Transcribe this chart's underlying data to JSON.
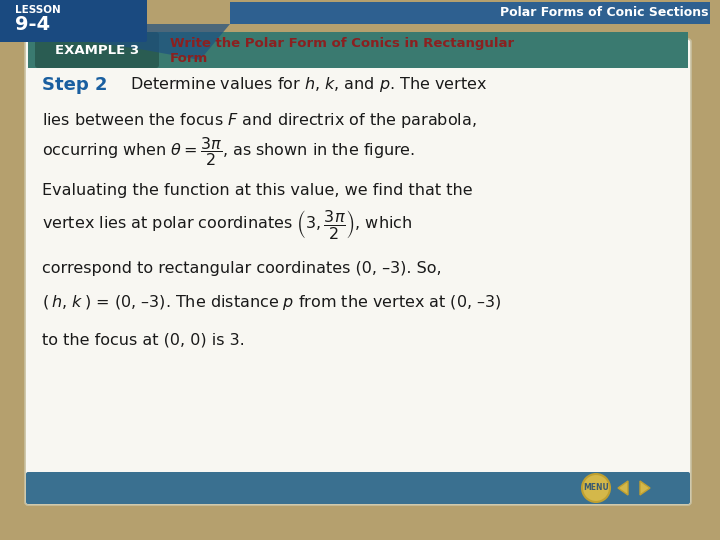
{
  "bg_color": "#b5a06e",
  "slide_bg": "#f8f7f2",
  "lesson_box_color": "#1a4a80",
  "header_bar_color": "#2e6090",
  "header_right_text": "Polar Forms of Conic Sections",
  "example_banner_color": "#3a7a70",
  "example_label_box_color": "#2a5c52",
  "example_label": "EXAMPLE 3",
  "example_title_line1": "Write the Polar Form of Conics in Rectangular",
  "example_title_line2": "Form",
  "title_color": "#8b2020",
  "step2_label": "Step 2",
  "step2_color": "#1a5fa0",
  "body_color": "#1a1a1a",
  "menu_btn_color": "#d4b84a",
  "nav_bar_color": "#4a8aaa",
  "bottom_bar_color": "#3a7090"
}
